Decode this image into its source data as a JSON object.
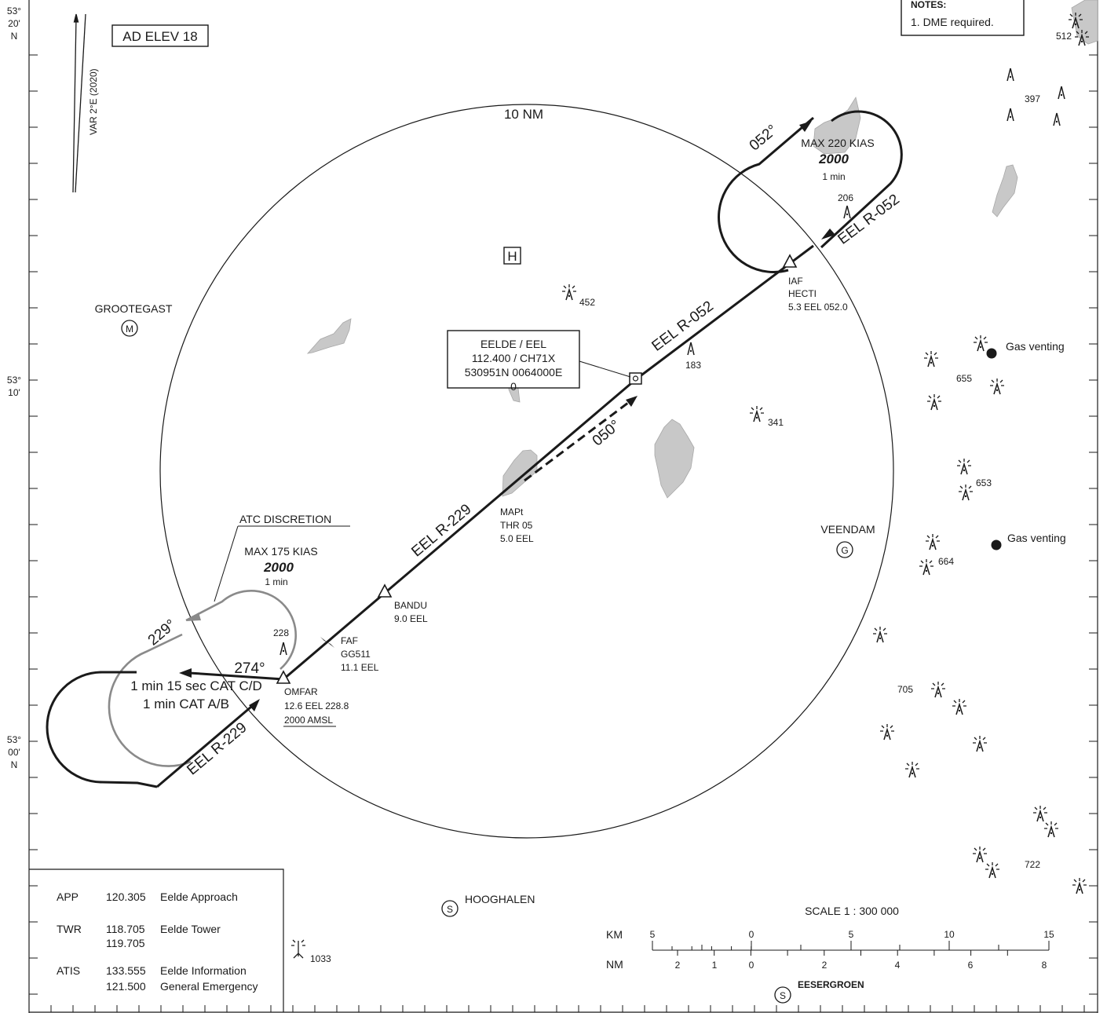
{
  "coords": {
    "lat_top": {
      "deg": "53°",
      "min": "20'",
      "hem": "N"
    },
    "lat_mid": {
      "deg": "53°",
      "min": "10'"
    },
    "lat_bottom": {
      "deg": "53°",
      "min": "00'",
      "hem": "N"
    }
  },
  "variation": "VAR 2°E (2020)",
  "ad_elev": "AD ELEV 18",
  "notes": {
    "title": "NOTES:",
    "item1": "1. DME required."
  },
  "circle_label": "10 NM",
  "vor": {
    "line1": "EELDE / EEL",
    "line2": "112.400 / CH71X",
    "line3": "530951N 0064000E",
    "line4": "0"
  },
  "holding_ne": {
    "speed": "MAX 220 KIAS",
    "alt": "2000",
    "time": "1 min",
    "inbound_track": "052°",
    "radial": "EEL R-052"
  },
  "holding_sw": {
    "discretion": "ATC DISCRETION",
    "speed": "MAX 175 KIAS",
    "alt": "2000",
    "time": "1 min",
    "inbound_track": "229°",
    "outbound_track": "274°",
    "cat_cd": "1 min 15 sec CAT C/D",
    "cat_ab": "1 min CAT A/B"
  },
  "radials": {
    "r052_mid": "EEL R-052",
    "r229_mid": "EEL R-229",
    "r229_low": "EEL R-229"
  },
  "missed_track": "050°",
  "fixes": {
    "iaf": {
      "l1": "IAF",
      "l2": "HECTI",
      "l3": "5.3 EEL 052.0"
    },
    "mapt": {
      "l1": "MAPt",
      "l2": "THR 05",
      "l3": "5.0 EEL"
    },
    "bandu": {
      "l1": "BANDU",
      "l2": "9.0 EEL"
    },
    "faf": {
      "l1": "FAF",
      "l2": "GG511",
      "l3": "11.1 EEL"
    },
    "omfar": {
      "l1": "OMFAR",
      "l2": "12.6 EEL 228.8",
      "l3": "2000 AMSL"
    }
  },
  "places": {
    "grootegast": "GROOTEGAST",
    "veendam": "VEENDAM",
    "hooghalen": "HOOGHALEN",
    "eesergroen": "EESERGROEN"
  },
  "place_symbols": {
    "m": "M",
    "g": "G",
    "s": "S",
    "heliport": "H"
  },
  "obstacles": [
    "512",
    "397",
    "206",
    "452",
    "183",
    "341",
    "655",
    "653",
    "664",
    "705",
    "722",
    "228",
    "1033"
  ],
  "gas_venting": [
    "Gas venting",
    "Gas venting"
  ],
  "comms": [
    {
      "name": "APP",
      "freq1": "120.305",
      "freq2": "",
      "station1": "Eelde  Approach",
      "station2": ""
    },
    {
      "name": "TWR",
      "freq1": "118.705",
      "freq2": "119.705",
      "station1": "Eelde  Tower",
      "station2": ""
    },
    {
      "name": "ATIS",
      "freq1": "133.555",
      "freq2": "121.500",
      "station1": "Eelde Information",
      "station2": "General Emergency"
    }
  ],
  "scale": {
    "title": "SCALE 1 : 300 000",
    "km_label": "KM",
    "nm_label": "NM",
    "km_ticks": [
      "5",
      "0",
      "5",
      "10",
      "15"
    ],
    "nm_ticks": [
      "2",
      "1",
      "0",
      "2",
      "4",
      "6",
      "8"
    ]
  },
  "colors": {
    "ink": "#1a1a1a",
    "water": "#c8c8c8",
    "grey_track": "#8a8a8a"
  }
}
